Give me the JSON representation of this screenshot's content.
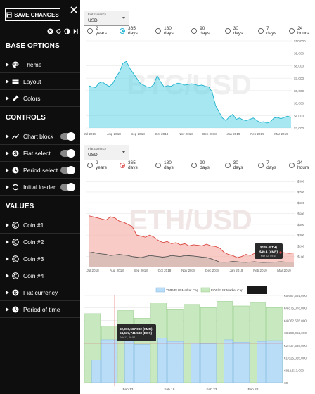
{
  "sidebar": {
    "save_label": "SAVE CHANGES",
    "sections": {
      "base_options": "BASE OPTIONS",
      "controls": "CONTROLS",
      "values": "VALUES"
    },
    "base_items": [
      "Theme",
      "Layout",
      "Colors"
    ],
    "control_items": [
      "Chart block",
      "Fiat select",
      "Period select",
      "Initial loader"
    ],
    "value_items": [
      "Coin #1",
      "Coin #2",
      "Coin #3",
      "Coin #4",
      "Fiat currency",
      "Period of time"
    ]
  },
  "fiat_select": {
    "label": "Fiat currency",
    "value": "USD"
  },
  "periods": [
    "2 years",
    "365 days",
    "180 days",
    "90 days",
    "30 days",
    "7 days",
    "24 hours"
  ],
  "colors": {
    "btc": "#5ed3e6",
    "eth": "#f5a8a0",
    "xmr": "#b9dcf7",
    "eos": "#c8e8c0",
    "radio_btc": "#26b5d3",
    "radio_eth": "#e05a5a"
  },
  "chart1": {
    "watermark": "BTC/USD",
    "selected_period": 1,
    "chart_data": {
      "type": "area",
      "x_ticks": [
        "Jul 2018",
        "Aug 2018",
        "Sep 2018",
        "Oct 2018",
        "Nov 2018",
        "Dec 2018",
        "Jan 2019",
        "Feb 2019",
        "Mar 2019"
      ],
      "y_ticks": [
        "$10,000",
        "$9,000",
        "$8,000",
        "$7,000",
        "$6,000",
        "$5,000",
        "$4,000",
        "$3,000"
      ],
      "ylim": [
        3000,
        10000
      ],
      "values": [
        6400,
        6300,
        6250,
        6600,
        6700,
        6500,
        6350,
        6550,
        7100,
        7500,
        8200,
        8350,
        7800,
        7400,
        7000,
        6600,
        6450,
        6300,
        6250,
        6500,
        7200,
        6700,
        6300,
        6400,
        6350,
        6500,
        6600,
        6550,
        6450,
        6500,
        6550,
        6500,
        6400,
        6450,
        6350,
        6300,
        5900,
        4800,
        4300,
        3800,
        3600,
        3900,
        4100,
        3700,
        3800,
        3650,
        3600,
        3700,
        3800,
        3600,
        3450,
        3500,
        3400,
        3500,
        3800,
        3850,
        3750,
        3850,
        3950,
        3850
      ]
    }
  },
  "chart2": {
    "watermark": "ETH/USD",
    "selected_period": 1,
    "tooltip": {
      "l1": "$135 (ETH)",
      "l2": "$49.4 (XMR)",
      "l3": "Mar 02, 09:44"
    },
    "chart_data": {
      "type": "area",
      "x_ticks": [
        "Jul 2018",
        "Aug 2018",
        "Sep 2018",
        "Oct 2018",
        "Nov 2018",
        "Dec 2018",
        "Jan 2019",
        "Feb 2019",
        "Mar 2019"
      ],
      "y_ticks": [
        "$800",
        "$700",
        "$600",
        "$500",
        "$400",
        "$300",
        "$200",
        "$100"
      ],
      "ylim": [
        0,
        850
      ],
      "series": [
        {
          "name": "ETH",
          "values": [
            480,
            470,
            460,
            450,
            440,
            470,
            460,
            430,
            420,
            400,
            380,
            300,
            290,
            280,
            300,
            280,
            250,
            230,
            240,
            220,
            230,
            210,
            220,
            200,
            210,
            205,
            200,
            215,
            200,
            195,
            180,
            140,
            120,
            110,
            90,
            100,
            120,
            110,
            130,
            110,
            120,
            115,
            110,
            120,
            140,
            135,
            130,
            135
          ]
        },
        {
          "name": "XMR",
          "values": [
            135,
            140,
            130,
            125,
            120,
            110,
            115,
            120,
            115,
            110,
            100,
            95,
            90,
            100,
            110,
            105,
            100,
            95,
            100,
            110,
            105,
            100,
            110,
            108,
            105,
            100,
            95,
            92,
            80,
            65,
            50,
            48,
            50,
            55,
            52,
            48,
            47,
            50,
            52,
            48,
            46,
            47,
            48,
            50,
            52,
            50,
            49,
            49
          ]
        }
      ]
    }
  },
  "chart3": {
    "legend": [
      "XMR/EUR Market Cap",
      "EOS/EUR Market Cap"
    ],
    "tooltip": {
      "l1": "€2,969,567,092 (XMR)",
      "l2": "€4,637,741,583 (EOS)",
      "l3": "Feb 12, 08:54"
    },
    "chart_data": {
      "type": "bar",
      "x_ticks": [
        "Feb 13",
        "Feb 18",
        "Feb 23",
        "Feb 28"
      ],
      "y_ticks": [
        "€5,687,591,000",
        "€4,875,078,000",
        "€4,062,565,000",
        "€3,250,052,000",
        "€2,437,539,000",
        "€1,625,026,000",
        "€812,513,000",
        "€0"
      ],
      "ylim": [
        0,
        5687591000
      ],
      "series": [
        {
          "name": "XMR/EUR Market Cap",
          "values": [
            1500000000,
            2800000000,
            2750000000,
            2500000000,
            2900000000,
            2700000000,
            2600000000,
            2550000000,
            2800000000,
            2650000000,
            2700000000,
            2750000000
          ]
        },
        {
          "name": "EOS/EUR Market Cap",
          "values": [
            4500000000,
            3700000000,
            4700000000,
            4200000000,
            5200000000,
            4800000000,
            5100000000,
            4900000000,
            5300000000,
            5000000000,
            5250000000,
            4900000000
          ]
        }
      ]
    }
  }
}
